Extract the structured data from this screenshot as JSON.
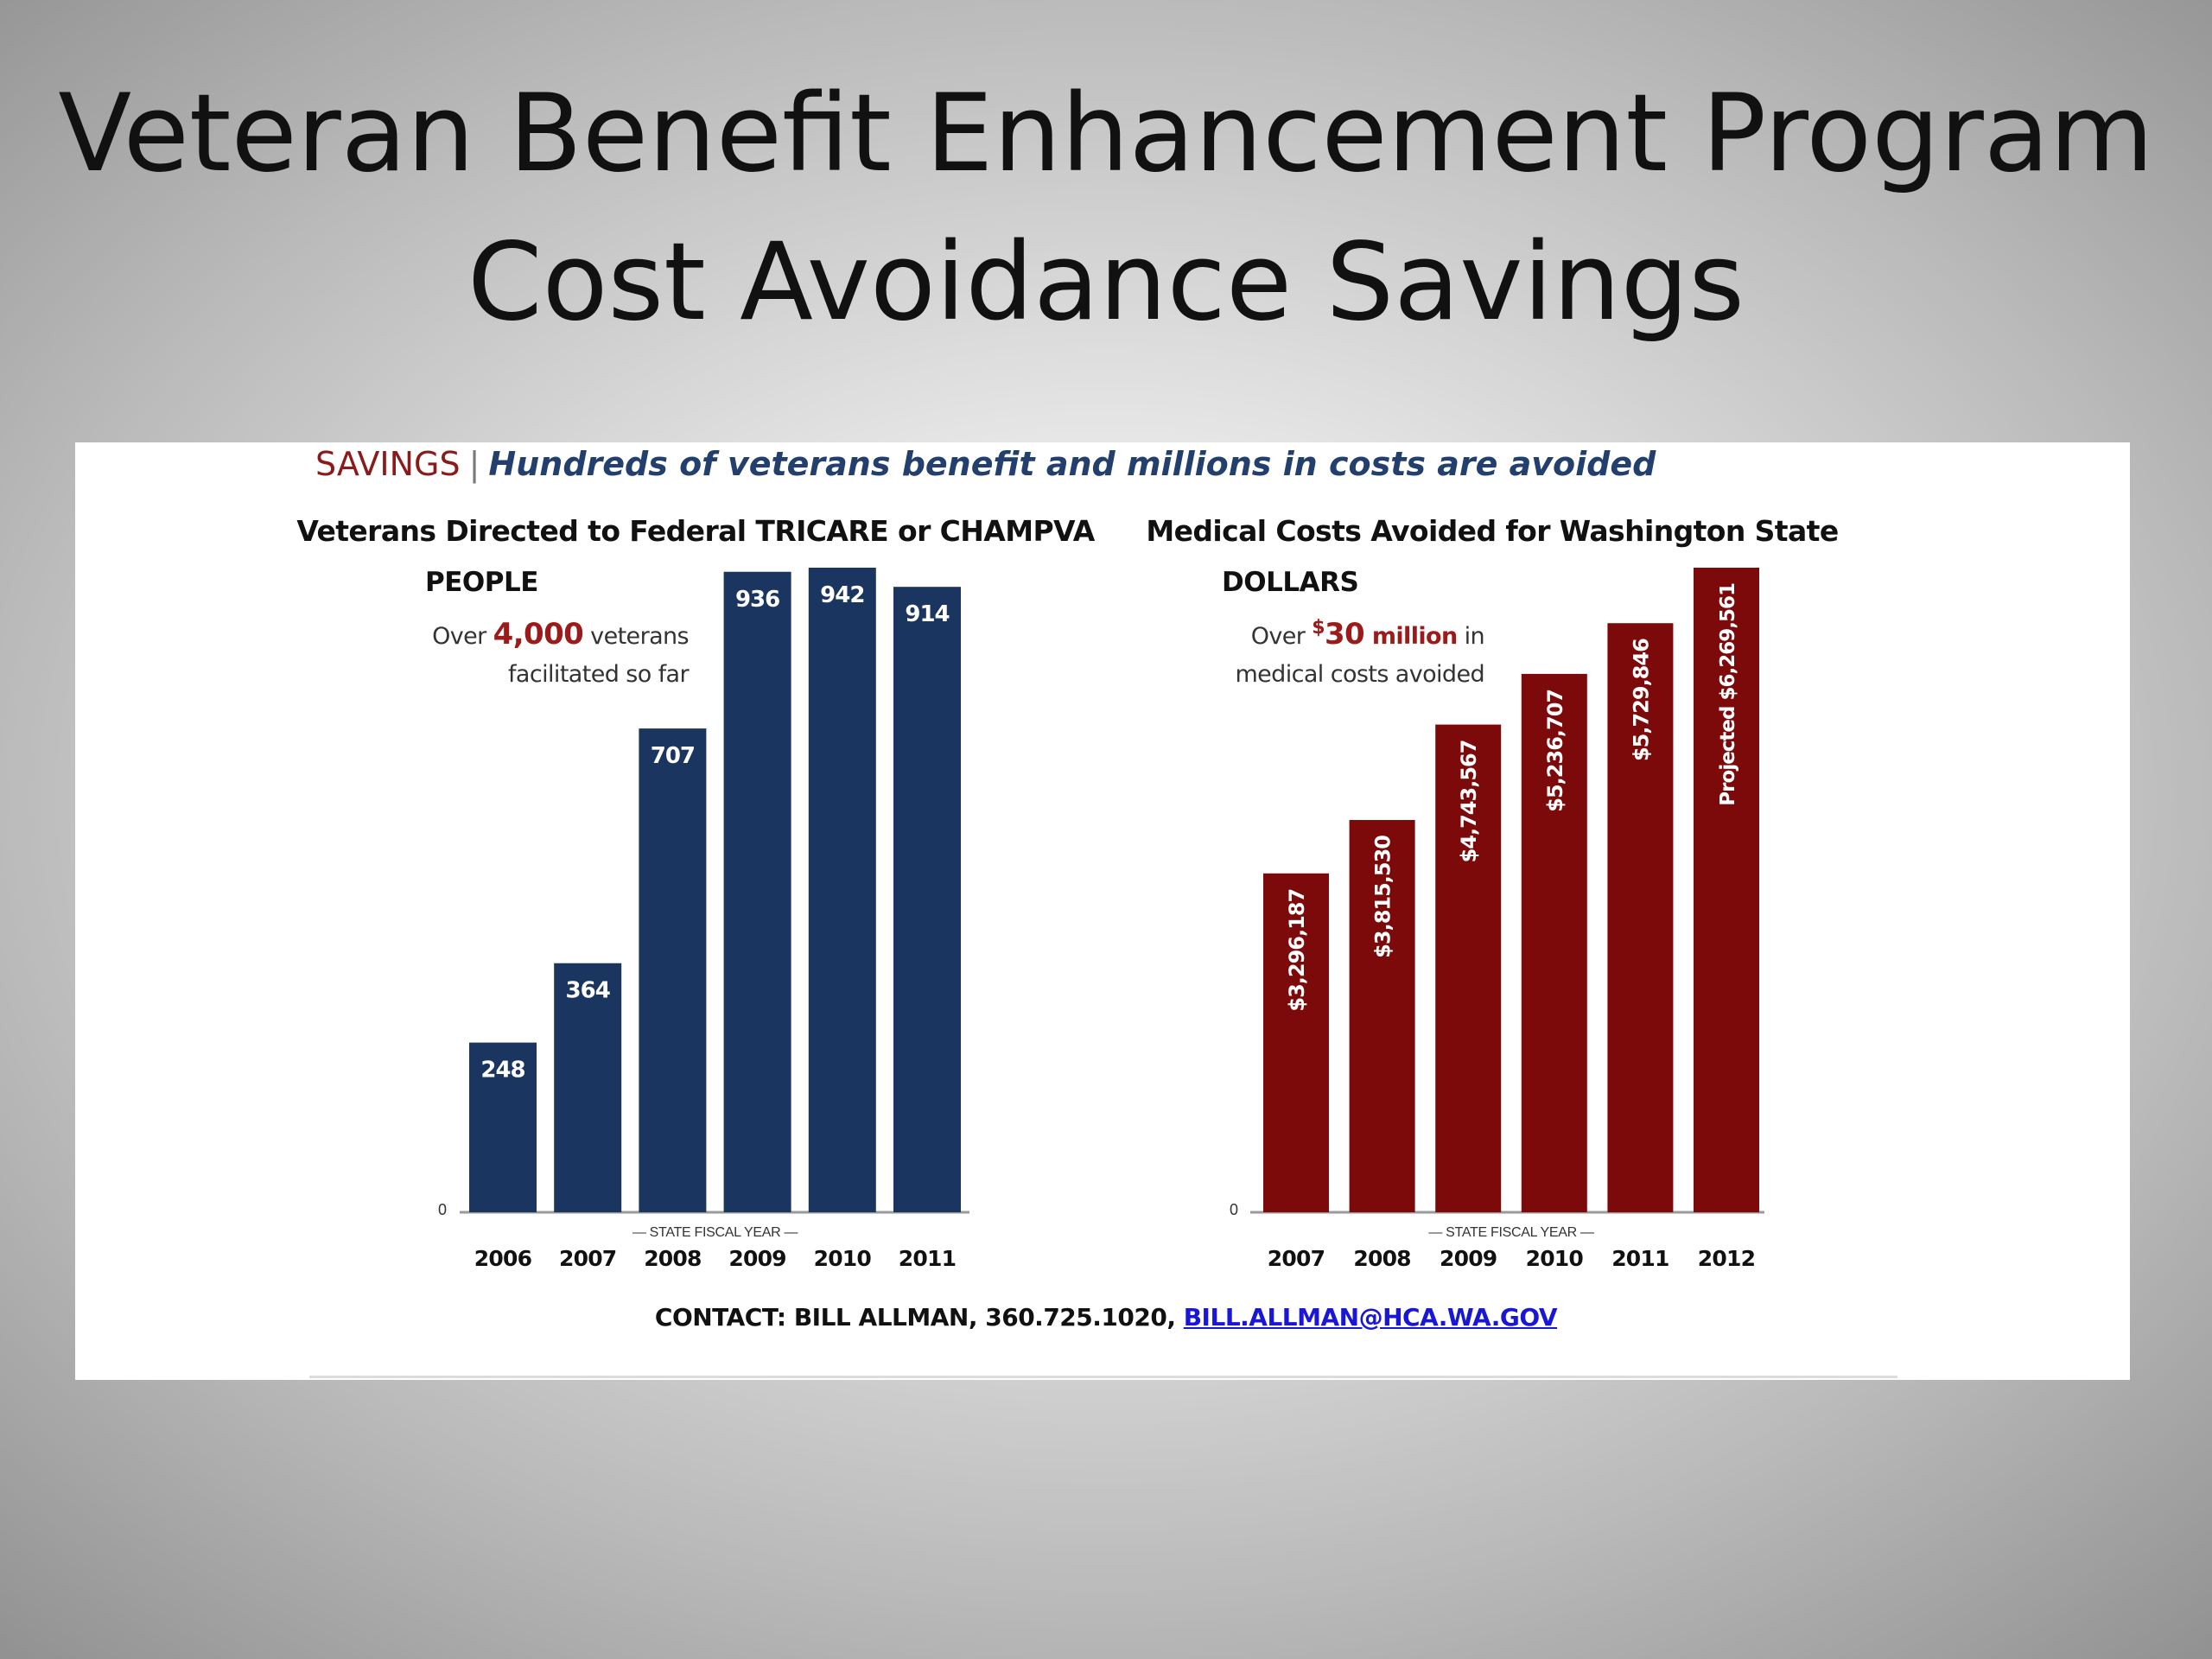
{
  "slide": {
    "title_line1": "Veteran Benefit Enhancement Program",
    "title_line2": "Cost Avoidance Savings"
  },
  "panel": {
    "savings_label": "SAVINGS",
    "separator": "|",
    "tagline": "Hundreds of veterans benefit and millions in costs are avoided",
    "contact_text": "CONTACT: BILL ALLMAN, 360.725.1020,",
    "contact_email": "BILL.ALLMAN@HCA.WA.GOV"
  },
  "colors": {
    "navy": "#1a3660",
    "maroon": "#7d0a0a",
    "accent_red": "#9b1b1b",
    "link_blue": "#1a16d6"
  },
  "chart_data": [
    {
      "type": "bar",
      "title": "Veterans Directed to Federal TRICARE or CHAMPVA",
      "unit_label": "PEOPLE",
      "annotation": {
        "prefix": "Over ",
        "highlight": "4,000",
        "suffix": " veterans",
        "line2": "facilitated so far"
      },
      "xlabel": "— STATE FISCAL YEAR —",
      "categories": [
        "2006",
        "2007",
        "2008",
        "2009",
        "2010",
        "2011"
      ],
      "values": [
        248,
        364,
        707,
        936,
        942,
        914
      ],
      "data_labels": [
        "248",
        "364",
        "707",
        "936",
        "942",
        "914"
      ],
      "ylim": [
        0,
        942
      ],
      "y_tick_label": "0",
      "color": "#1a3660",
      "label_orientation": "horizontal",
      "grid": false
    },
    {
      "type": "bar",
      "title": "Medical Costs Avoided for Washington State",
      "unit_label": "DOLLARS",
      "annotation": {
        "prefix": "Over ",
        "highlight_sup": "$",
        "highlight": "30 million",
        "suffix": " in",
        "line2": "medical costs avoided"
      },
      "xlabel": "— STATE FISCAL YEAR —",
      "categories": [
        "2007",
        "2008",
        "2009",
        "2010",
        "2011",
        "2012"
      ],
      "values": [
        3296187,
        3815530,
        4743567,
        5236707,
        5729846,
        6269561
      ],
      "data_labels": [
        "$3,296,187",
        "$3,815,530",
        "$4,743,567",
        "$5,236,707",
        "$5,729,846",
        "Projected $6,269,561"
      ],
      "ylim": [
        0,
        6269561
      ],
      "y_tick_label": "0",
      "color": "#7d0a0a",
      "label_orientation": "vertical",
      "grid": false
    }
  ]
}
